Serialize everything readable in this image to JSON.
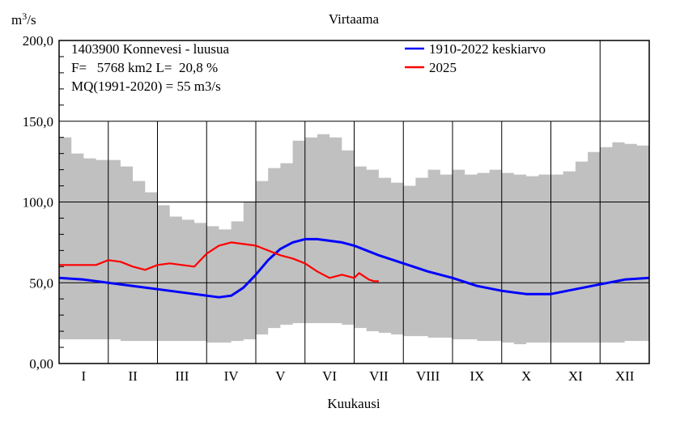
{
  "chart_data": {
    "type": "area",
    "title": "Virtaama",
    "ylabel_base": "m",
    "ylabel_sup": "3",
    "ylabel_tail": "/s",
    "xlabel": "Kuukausi",
    "ylim": [
      0,
      200
    ],
    "yticks": [
      "0,00",
      "50,0",
      "100,0",
      "150,0",
      "200,0"
    ],
    "ytick_values": [
      0,
      50,
      100,
      150,
      200
    ],
    "categories": [
      "I",
      "II",
      "III",
      "IV",
      "V",
      "VI",
      "VII",
      "VIII",
      "IX",
      "X",
      "XI",
      "XII"
    ],
    "grid": true,
    "info_lines": [
      "1403900 Konnevesi - luusua",
      "F=   5768 km2 L=  20,8 %",
      "MQ(1991-2020) = 55 m3/s"
    ],
    "band": {
      "color": "#c0c0c0",
      "x": [
        0.0,
        0.25,
        0.5,
        0.75,
        1.0,
        1.25,
        1.5,
        1.75,
        2.0,
        2.25,
        2.5,
        2.75,
        3.0,
        3.25,
        3.5,
        3.75,
        4.0,
        4.25,
        4.5,
        4.75,
        5.0,
        5.25,
        5.5,
        5.75,
        6.0,
        6.25,
        6.5,
        6.75,
        7.0,
        7.25,
        7.5,
        7.75,
        8.0,
        8.25,
        8.5,
        8.75,
        9.0,
        9.25,
        9.5,
        9.75,
        10.0,
        10.25,
        10.5,
        10.75,
        11.0,
        11.25,
        11.5,
        11.75,
        12.0
      ],
      "upper": [
        140,
        130,
        127,
        126,
        126,
        122,
        113,
        106,
        98,
        91,
        89,
        87,
        85,
        83,
        88,
        100,
        113,
        121,
        124,
        138,
        140,
        142,
        140,
        132,
        122,
        120,
        115,
        112,
        110,
        115,
        120,
        117,
        120,
        117,
        118,
        120,
        118,
        117,
        116,
        117,
        117,
        119,
        125,
        131,
        134,
        137,
        136,
        135,
        137
      ],
      "lower": [
        15,
        15,
        15,
        15,
        15,
        14,
        14,
        14,
        14,
        14,
        14,
        14,
        13,
        13,
        14,
        15,
        18,
        22,
        24,
        25,
        25,
        25,
        25,
        24,
        22,
        20,
        19,
        18,
        17,
        17,
        16,
        16,
        15,
        15,
        14,
        14,
        13,
        12,
        13,
        13,
        13,
        13,
        13,
        13,
        13,
        13,
        14,
        14,
        14
      ]
    },
    "series": [
      {
        "name": "1910-2022 keskiarvo",
        "color": "#0000ff",
        "x": [
          0.0,
          0.5,
          1.0,
          1.5,
          2.0,
          2.5,
          3.0,
          3.25,
          3.5,
          3.75,
          4.0,
          4.25,
          4.5,
          4.75,
          5.0,
          5.25,
          5.5,
          5.75,
          6.0,
          6.5,
          7.0,
          7.5,
          8.0,
          8.5,
          9.0,
          9.5,
          10.0,
          10.5,
          11.0,
          11.5,
          12.0
        ],
        "values": [
          53,
          52,
          50,
          48,
          46,
          44,
          42,
          41,
          42,
          47,
          55,
          64,
          71,
          75,
          77,
          77,
          76,
          75,
          73,
          67,
          62,
          57,
          53,
          48,
          45,
          43,
          43,
          46,
          49,
          52,
          53
        ]
      },
      {
        "name": "2025",
        "color": "#ff0000",
        "x": [
          0.0,
          0.25,
          0.5,
          0.75,
          1.0,
          1.25,
          1.5,
          1.75,
          2.0,
          2.25,
          2.5,
          2.75,
          3.0,
          3.25,
          3.5,
          3.75,
          4.0,
          4.25,
          4.5,
          4.75,
          5.0,
          5.25,
          5.5,
          5.75,
          6.0,
          6.1,
          6.2,
          6.3,
          6.4,
          6.5
        ],
        "values": [
          61,
          61,
          61,
          61,
          64,
          63,
          60,
          58,
          61,
          62,
          61,
          60,
          68,
          73,
          75,
          74,
          73,
          70,
          67,
          65,
          62,
          57,
          53,
          55,
          53,
          56,
          54,
          52,
          51,
          51
        ]
      }
    ]
  }
}
